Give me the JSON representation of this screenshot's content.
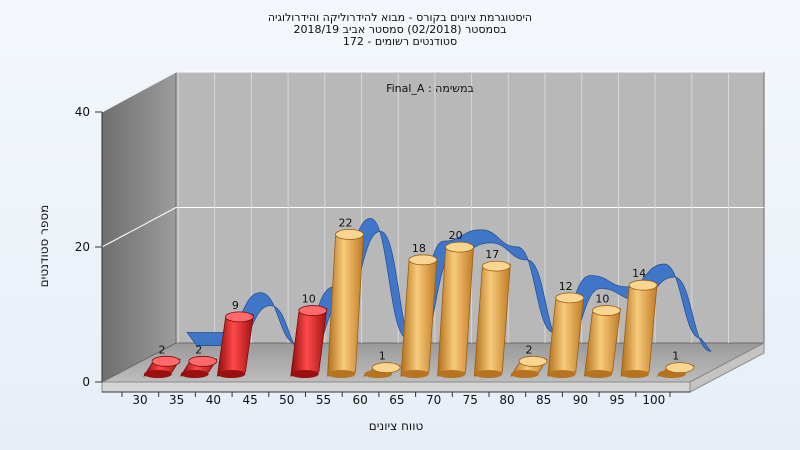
{
  "chart_data": {
    "type": "bar",
    "title_lines": [
      "היסטוגרמת ציונים בקורס - מבוא להידרוליקה והידרולוגיה",
      "בסמסטר  (02/2018)  סמסטר אביב 2018/19",
      "סטודנטים רשומים - 172"
    ],
    "annotation": "Final_A : במשימה",
    "xlabel": "טווח ציונים",
    "ylabel": "מספר סטודנטים",
    "categories": [
      "30",
      "35",
      "40",
      "45",
      "50",
      "55",
      "60",
      "65",
      "70",
      "75",
      "80",
      "85",
      "90",
      "95",
      "100"
    ],
    "values": [
      2,
      2,
      9,
      0,
      10,
      22,
      1,
      18,
      20,
      17,
      2,
      12,
      10,
      14,
      1
    ],
    "bar_colors": [
      "#d62020",
      "#d62020",
      "#d62020",
      "#d62020",
      "#d62020",
      "#e3a445",
      "#e3a445",
      "#e3a445",
      "#e3a445",
      "#e3a445",
      "#e3a445",
      "#e3a445",
      "#e3a445",
      "#e3a445",
      "#e3a445"
    ],
    "curve_color": "#3a73c8",
    "ylim": [
      0,
      40
    ],
    "yticks": [
      0,
      20,
      40
    ],
    "grid": true,
    "legend": "none"
  }
}
